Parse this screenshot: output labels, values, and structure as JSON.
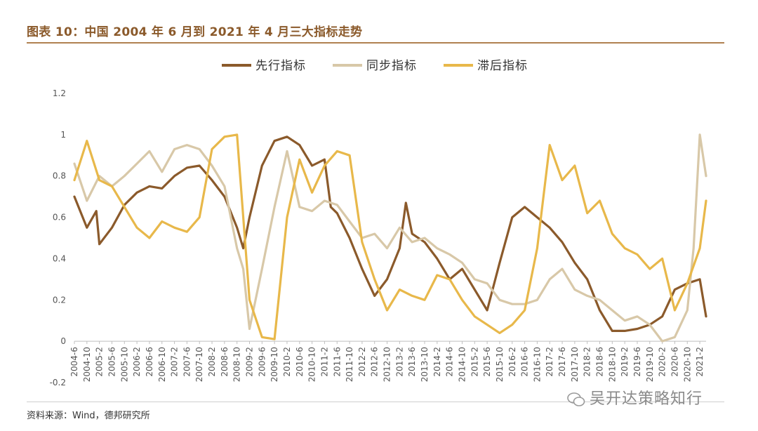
{
  "header": {
    "title": "图表 10：中国 2004 年 6 月到 2021 年 4 月三大指标走势"
  },
  "footer": {
    "source": "资料来源：Wind，德邦研究所",
    "watermark": "吴开达策略知行"
  },
  "chart_data": {
    "type": "line",
    "title": "图表 10：中国 2004 年 6 月到 2021 年 4 月三大指标走势",
    "xlabel": "",
    "ylabel": "",
    "ylim": [
      -0.2,
      1.2
    ],
    "yticks": [
      -0.2,
      0,
      0.2,
      0.4,
      0.6,
      0.8,
      1,
      1.2
    ],
    "ytick_labels": [
      "-0.2",
      "0",
      "0.2",
      "0.4",
      "0.6",
      "0.8",
      "1",
      "1.2"
    ],
    "xlim": [
      "2004-6",
      "2021-4"
    ],
    "xtick_labels": [
      "2004-6",
      "2004-10",
      "2005-2",
      "2005-6",
      "2005-10",
      "2006-2",
      "2006-6",
      "2006-10",
      "2007-2",
      "2007-6",
      "2007-10",
      "2008-2",
      "2008-6",
      "2008-10",
      "2009-2",
      "2009-6",
      "2009-10",
      "2010-2",
      "2010-6",
      "2010-10",
      "2011-2",
      "2011-6",
      "2011-10",
      "2012-2",
      "2012-6",
      "2012-10",
      "2013-2",
      "2013-6",
      "2013-10",
      "2014-2",
      "2014-6",
      "2014-10",
      "2015-2",
      "2015-6",
      "2015-10",
      "2016-2",
      "2016-6",
      "2016-10",
      "2017-2",
      "2017-6",
      "2017-10",
      "2018-2",
      "2018-6",
      "2018-10",
      "2019-2",
      "2019-6",
      "2019-10",
      "2020-2",
      "2020-6",
      "2020-10",
      "2021-2"
    ],
    "legend_position": "top-center",
    "series": [
      {
        "name": "先行指标",
        "color": "#8B5A2B",
        "points": [
          [
            "2004-6",
            0.7
          ],
          [
            "2004-10",
            0.55
          ],
          [
            "2005-1",
            0.63
          ],
          [
            "2005-2",
            0.47
          ],
          [
            "2005-6",
            0.55
          ],
          [
            "2005-10",
            0.66
          ],
          [
            "2006-2",
            0.72
          ],
          [
            "2006-6",
            0.75
          ],
          [
            "2006-10",
            0.74
          ],
          [
            "2007-2",
            0.8
          ],
          [
            "2007-6",
            0.84
          ],
          [
            "2007-10",
            0.85
          ],
          [
            "2008-2",
            0.78
          ],
          [
            "2008-6",
            0.7
          ],
          [
            "2008-10",
            0.55
          ],
          [
            "2008-12",
            0.45
          ],
          [
            "2009-2",
            0.6
          ],
          [
            "2009-6",
            0.85
          ],
          [
            "2009-10",
            0.97
          ],
          [
            "2010-2",
            0.99
          ],
          [
            "2010-6",
            0.95
          ],
          [
            "2010-10",
            0.85
          ],
          [
            "2011-2",
            0.88
          ],
          [
            "2011-4",
            0.65
          ],
          [
            "2011-6",
            0.62
          ],
          [
            "2011-10",
            0.5
          ],
          [
            "2012-2",
            0.35
          ],
          [
            "2012-6",
            0.22
          ],
          [
            "2012-10",
            0.3
          ],
          [
            "2013-2",
            0.45
          ],
          [
            "2013-4",
            0.67
          ],
          [
            "2013-6",
            0.52
          ],
          [
            "2013-10",
            0.48
          ],
          [
            "2014-2",
            0.4
          ],
          [
            "2014-6",
            0.3
          ],
          [
            "2014-10",
            0.35
          ],
          [
            "2015-2",
            0.25
          ],
          [
            "2015-6",
            0.15
          ],
          [
            "2015-10",
            0.38
          ],
          [
            "2016-2",
            0.6
          ],
          [
            "2016-6",
            0.65
          ],
          [
            "2016-10",
            0.6
          ],
          [
            "2017-2",
            0.55
          ],
          [
            "2017-6",
            0.48
          ],
          [
            "2017-10",
            0.38
          ],
          [
            "2018-2",
            0.3
          ],
          [
            "2018-6",
            0.15
          ],
          [
            "2018-10",
            0.05
          ],
          [
            "2019-2",
            0.05
          ],
          [
            "2019-6",
            0.06
          ],
          [
            "2019-10",
            0.08
          ],
          [
            "2020-2",
            0.12
          ],
          [
            "2020-6",
            0.25
          ],
          [
            "2020-10",
            0.28
          ],
          [
            "2021-2",
            0.3
          ],
          [
            "2021-4",
            0.12
          ]
        ]
      },
      {
        "name": "同步指标",
        "color": "#D8C8A8",
        "points": [
          [
            "2004-6",
            0.86
          ],
          [
            "2004-10",
            0.68
          ],
          [
            "2005-2",
            0.8
          ],
          [
            "2005-6",
            0.75
          ],
          [
            "2005-10",
            0.8
          ],
          [
            "2006-2",
            0.86
          ],
          [
            "2006-6",
            0.92
          ],
          [
            "2006-10",
            0.82
          ],
          [
            "2007-2",
            0.93
          ],
          [
            "2007-6",
            0.95
          ],
          [
            "2007-10",
            0.93
          ],
          [
            "2008-2",
            0.85
          ],
          [
            "2008-6",
            0.75
          ],
          [
            "2008-10",
            0.45
          ],
          [
            "2008-12",
            0.35
          ],
          [
            "2009-2",
            0.06
          ],
          [
            "2009-6",
            0.35
          ],
          [
            "2009-10",
            0.65
          ],
          [
            "2010-2",
            0.92
          ],
          [
            "2010-6",
            0.65
          ],
          [
            "2010-10",
            0.63
          ],
          [
            "2011-2",
            0.68
          ],
          [
            "2011-6",
            0.66
          ],
          [
            "2011-10",
            0.58
          ],
          [
            "2012-2",
            0.5
          ],
          [
            "2012-6",
            0.52
          ],
          [
            "2012-10",
            0.45
          ],
          [
            "2013-2",
            0.55
          ],
          [
            "2013-6",
            0.48
          ],
          [
            "2013-10",
            0.5
          ],
          [
            "2014-2",
            0.45
          ],
          [
            "2014-6",
            0.42
          ],
          [
            "2014-10",
            0.38
          ],
          [
            "2015-2",
            0.3
          ],
          [
            "2015-6",
            0.28
          ],
          [
            "2015-10",
            0.2
          ],
          [
            "2016-2",
            0.18
          ],
          [
            "2016-6",
            0.18
          ],
          [
            "2016-10",
            0.2
          ],
          [
            "2017-2",
            0.3
          ],
          [
            "2017-6",
            0.35
          ],
          [
            "2017-10",
            0.25
          ],
          [
            "2018-2",
            0.22
          ],
          [
            "2018-6",
            0.2
          ],
          [
            "2018-10",
            0.15
          ],
          [
            "2019-2",
            0.1
          ],
          [
            "2019-6",
            0.12
          ],
          [
            "2019-10",
            0.08
          ],
          [
            "2020-2",
            0.0
          ],
          [
            "2020-6",
            0.02
          ],
          [
            "2020-10",
            0.15
          ],
          [
            "2020-12",
            0.45
          ],
          [
            "2021-2",
            1.0
          ],
          [
            "2021-4",
            0.8
          ]
        ]
      },
      {
        "name": "滞后指标",
        "color": "#E8B84A",
        "points": [
          [
            "2004-6",
            0.78
          ],
          [
            "2004-10",
            0.97
          ],
          [
            "2005-2",
            0.78
          ],
          [
            "2005-6",
            0.75
          ],
          [
            "2005-10",
            0.65
          ],
          [
            "2006-2",
            0.55
          ],
          [
            "2006-6",
            0.5
          ],
          [
            "2006-10",
            0.58
          ],
          [
            "2007-2",
            0.55
          ],
          [
            "2007-6",
            0.53
          ],
          [
            "2007-10",
            0.6
          ],
          [
            "2008-2",
            0.93
          ],
          [
            "2008-6",
            0.99
          ],
          [
            "2008-10",
            1.0
          ],
          [
            "2009-2",
            0.2
          ],
          [
            "2009-6",
            0.02
          ],
          [
            "2009-10",
            0.01
          ],
          [
            "2010-2",
            0.6
          ],
          [
            "2010-6",
            0.88
          ],
          [
            "2010-10",
            0.72
          ],
          [
            "2011-2",
            0.85
          ],
          [
            "2011-6",
            0.92
          ],
          [
            "2011-10",
            0.9
          ],
          [
            "2012-2",
            0.48
          ],
          [
            "2012-6",
            0.3
          ],
          [
            "2012-10",
            0.15
          ],
          [
            "2013-2",
            0.25
          ],
          [
            "2013-6",
            0.22
          ],
          [
            "2013-10",
            0.2
          ],
          [
            "2014-2",
            0.32
          ],
          [
            "2014-6",
            0.3
          ],
          [
            "2014-10",
            0.2
          ],
          [
            "2015-2",
            0.12
          ],
          [
            "2015-6",
            0.08
          ],
          [
            "2015-10",
            0.04
          ],
          [
            "2016-2",
            0.08
          ],
          [
            "2016-6",
            0.15
          ],
          [
            "2016-10",
            0.45
          ],
          [
            "2017-2",
            0.95
          ],
          [
            "2017-6",
            0.78
          ],
          [
            "2017-10",
            0.85
          ],
          [
            "2018-2",
            0.62
          ],
          [
            "2018-6",
            0.68
          ],
          [
            "2018-10",
            0.52
          ],
          [
            "2019-2",
            0.45
          ],
          [
            "2019-6",
            0.42
          ],
          [
            "2019-10",
            0.35
          ],
          [
            "2020-2",
            0.4
          ],
          [
            "2020-6",
            0.15
          ],
          [
            "2020-10",
            0.28
          ],
          [
            "2021-2",
            0.45
          ],
          [
            "2021-4",
            0.68
          ]
        ]
      }
    ]
  }
}
